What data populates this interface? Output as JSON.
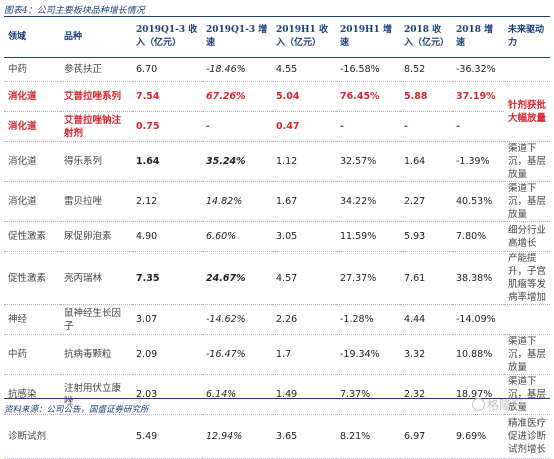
{
  "title": "图表4：公司主要板块品种增长情况",
  "headers": {
    "domain": "领域",
    "product": "品种",
    "rev_2019q13": "2019Q1-3 收入（亿元）",
    "growth_2019q13": "2019Q1-3 增速",
    "rev_2019h1": "2019H1 收入（亿元）",
    "growth_2019h1": "2019H1 增速",
    "rev_2018": "2018 收入（亿元）",
    "growth_2018": "2018 增速",
    "driver": "未来驱动力"
  },
  "rows": [
    {
      "domain": "中药",
      "product": "参芪扶正",
      "rev_2019q13": "6.70",
      "growth_2019q13": "-18.46%",
      "rev_2019h1": "4.55",
      "growth_2019h1": "-16.58%",
      "rev_2018": "8.52",
      "growth_2018": "-36.32%",
      "driver": ""
    },
    {
      "domain": "消化道",
      "product": "艾普拉唑系列",
      "rev_2019q13": "7.54",
      "growth_2019q13": "67.26%",
      "rev_2019h1": "5.04",
      "growth_2019h1": "76.45%",
      "rev_2018": "5.88",
      "growth_2018": "37.19%",
      "driver": "针剂获批大幅放量"
    },
    {
      "domain": "消化道",
      "product": "艾普拉唑钠注射剂",
      "rev_2019q13": "0.75",
      "growth_2019q13": "-",
      "rev_2019h1": "0.47",
      "growth_2019h1": "-",
      "rev_2018": "-",
      "growth_2018": "-",
      "driver": ""
    },
    {
      "domain": "消化道",
      "product": "得乐系列",
      "rev_2019q13": "1.64",
      "growth_2019q13": "35.24%",
      "rev_2019h1": "1.12",
      "growth_2019h1": "32.57%",
      "rev_2018": "1.64",
      "growth_2018": "-1.39%",
      "driver": "渠道下沉，基层放量"
    },
    {
      "domain": "消化道",
      "product": "雷贝拉唑",
      "rev_2019q13": "2.12",
      "growth_2019q13": "14.82%",
      "rev_2019h1": "1.67",
      "growth_2019h1": "34.22%",
      "rev_2018": "2.27",
      "growth_2018": "40.53%",
      "driver": "渠道下沉，基层放量"
    },
    {
      "domain": "促性激素",
      "product": "尿促卵泡素",
      "rev_2019q13": "4.90",
      "growth_2019q13": "6.60%",
      "rev_2019h1": "3.05",
      "growth_2019h1": "11.59%",
      "rev_2018": "5.93",
      "growth_2018": "7.80%",
      "driver": "细分行业高增长"
    },
    {
      "domain": "促性激素",
      "product": "亮丙瑞林",
      "rev_2019q13": "7.35",
      "growth_2019q13": "24.67%",
      "rev_2019h1": "4.57",
      "growth_2019h1": "27.37%",
      "rev_2018": "7.61",
      "growth_2018": "38.38%",
      "driver": "产能提升，子宫肌瘤等发病率增加"
    },
    {
      "domain": "神经",
      "product": "鼠神经生长因子",
      "rev_2019q13": "3.07",
      "growth_2019q13": "-14.62%",
      "rev_2019h1": "2.26",
      "growth_2019h1": "-1.28%",
      "rev_2018": "4.44",
      "growth_2018": "-14.09%",
      "driver": ""
    },
    {
      "domain": "中药",
      "product": "抗病毒颗粒",
      "rev_2019q13": "2.09",
      "growth_2019q13": "-16.47%",
      "rev_2019h1": "1.7",
      "growth_2019h1": "-19.34%",
      "rev_2018": "3.32",
      "growth_2018": "10.88%",
      "driver": "渠道下沉，基层放量"
    },
    {
      "domain": "抗感染",
      "product": "注射用伏立康唑",
      "rev_2019q13": "2.03",
      "growth_2019q13": "6.14%",
      "rev_2019h1": "1.49",
      "growth_2019h1": "7.37%",
      "rev_2018": "2.32",
      "growth_2018": "18.97%",
      "driver": "渠道下沉，基层放量"
    },
    {
      "domain": "诊断试剂",
      "product": "",
      "rev_2019q13": "5.49",
      "growth_2019q13": "12.94%",
      "rev_2019h1": "3.65",
      "growth_2019h1": "8.21%",
      "rev_2018": "6.97",
      "growth_2018": "9.69%",
      "driver": "精准医疗促进诊断试剂增长"
    }
  ],
  "source": "资料来源：公司公告，国盛证券研究所",
  "watermark": "格隆汇",
  "colors": {
    "accent": "#1e3f78",
    "highlight": "#d7282f"
  }
}
